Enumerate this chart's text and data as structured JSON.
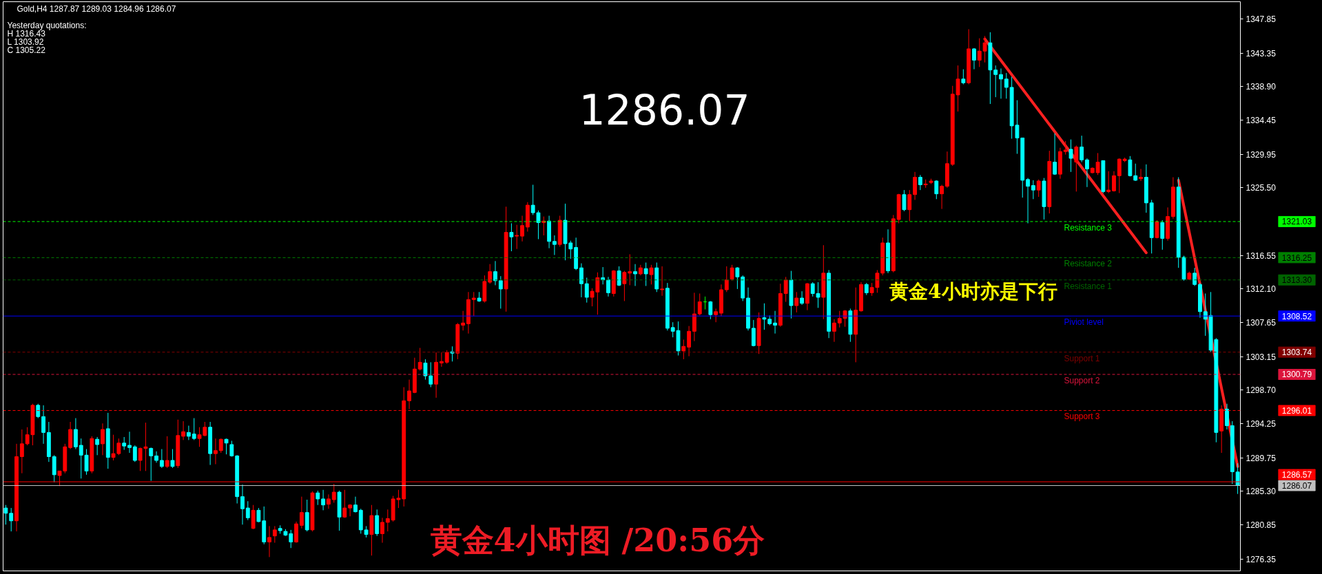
{
  "chart_data": {
    "type": "candlestick",
    "title": "Gold,H4 1287.87 1289.03 1284.96 1286.07",
    "categories": [
      null,
      null,
      null,
      null,
      null,
      null,
      null,
      null,
      null,
      null,
      null,
      null,
      null,
      null,
      null,
      null,
      null,
      null,
      null,
      null,
      null,
      null,
      null,
      null,
      null,
      null,
      null,
      null,
      null,
      null,
      null,
      null,
      null,
      null,
      null,
      null,
      null,
      null,
      null,
      null,
      null,
      null,
      null,
      null,
      null,
      null,
      null,
      null,
      null,
      null,
      null,
      null,
      null,
      null,
      null,
      null,
      null,
      null,
      null,
      null,
      null,
      null,
      null,
      null,
      null,
      null,
      null,
      null,
      null,
      null,
      null,
      null,
      null,
      null,
      null,
      null,
      null,
      null,
      null,
      null,
      null,
      null,
      null,
      null,
      null,
      null,
      null,
      null,
      null,
      null,
      null,
      null,
      null,
      null,
      null,
      null,
      null,
      null,
      null,
      null,
      null,
      null,
      null,
      null,
      null,
      null,
      null,
      null,
      null,
      null,
      null,
      null,
      null,
      null,
      null,
      null,
      null,
      null,
      null,
      null,
      null,
      null,
      null,
      null,
      null,
      null,
      null,
      null,
      null,
      null,
      null,
      null,
      null,
      null,
      null,
      null,
      null,
      null,
      null,
      null,
      null,
      null,
      null,
      null,
      null,
      null,
      null,
      null,
      null,
      null,
      null,
      null,
      null,
      null,
      null,
      null,
      null,
      null,
      null,
      null,
      null,
      null,
      null,
      null,
      null,
      null,
      null,
      null,
      null,
      null,
      null,
      null,
      null,
      null,
      null,
      null,
      null,
      null,
      null,
      null,
      null,
      null,
      null,
      null,
      null,
      null,
      null,
      null,
      null,
      null,
      null,
      null,
      null,
      null,
      null,
      null,
      null,
      null,
      null,
      null,
      null,
      null,
      null,
      null,
      null,
      null,
      null,
      null,
      null,
      null,
      null,
      null,
      null,
      null,
      null,
      null,
      null,
      null,
      null,
      null,
      null,
      null,
      null,
      null,
      null,
      null,
      null,
      null,
      null,
      null
    ],
    "ohlc": [
      [
        1283.1,
        1283.5,
        1280.9,
        1282.4
      ],
      [
        1282.4,
        1283.1,
        1280.0,
        1281.4
      ],
      [
        1281.4,
        1291.6,
        1280.0,
        1289.9
      ],
      [
        1289.9,
        1293.5,
        1287.7,
        1291.6
      ],
      [
        1291.6,
        1293.8,
        1291.4,
        1292.8
      ],
      [
        1292.8,
        1296.9,
        1291.4,
        1296.7
      ],
      [
        1296.7,
        1296.9,
        1295.0,
        1295.2
      ],
      [
        1295.2,
        1296.7,
        1291.6,
        1293.1
      ],
      [
        1293.1,
        1294.5,
        1289.2,
        1289.9
      ],
      [
        1289.9,
        1290.1,
        1286.5,
        1287.5
      ],
      [
        1287.4,
        1288.0,
        1286.0,
        1288.0
      ],
      [
        1288.0,
        1291.6,
        1287.7,
        1291.2
      ],
      [
        1291.1,
        1294.5,
        1290.9,
        1293.5
      ],
      [
        1293.5,
        1295.0,
        1290.9,
        1291.2
      ],
      [
        1291.4,
        1292.3,
        1287.0,
        1290.1
      ],
      [
        1290.1,
        1290.9,
        1287.5,
        1288.0
      ],
      [
        1288.0,
        1292.6,
        1287.7,
        1292.3
      ],
      [
        1292.2,
        1292.5,
        1290.1,
        1291.5
      ],
      [
        1291.6,
        1294.3,
        1290.1,
        1293.5
      ],
      [
        1293.6,
        1295.7,
        1288.3,
        1289.8
      ],
      [
        1289.8,
        1292.8,
        1289.4,
        1290.3
      ],
      [
        1290.3,
        1292.3,
        1290.1,
        1291.7
      ],
      [
        1291.7,
        1292.5,
        1290.8,
        1291.3
      ],
      [
        1291.4,
        1293.2,
        1290.4,
        1291.1
      ],
      [
        1291.2,
        1291.4,
        1289.2,
        1289.4
      ],
      [
        1289.4,
        1291.1,
        1288.0,
        1291.0
      ],
      [
        1291.0,
        1294.4,
        1288.0,
        1291.2
      ],
      [
        1291.0,
        1291.1,
        1286.7,
        1290.0
      ],
      [
        1290.0,
        1290.6,
        1289.1,
        1289.4
      ],
      [
        1289.4,
        1290.9,
        1288.4,
        1288.6
      ],
      [
        1288.6,
        1292.6,
        1288.4,
        1289.4
      ],
      [
        1289.4,
        1290.9,
        1288.4,
        1288.6
      ],
      [
        1288.7,
        1294.8,
        1288.4,
        1292.7
      ],
      [
        1292.6,
        1294.6,
        1292.1,
        1293.2
      ],
      [
        1293.1,
        1294.0,
        1292.1,
        1292.6
      ],
      [
        1292.9,
        1295.0,
        1292.1,
        1292.3
      ],
      [
        1292.3,
        1293.8,
        1291.2,
        1292.8
      ],
      [
        1292.7,
        1294.5,
        1292.6,
        1293.8
      ],
      [
        1293.8,
        1294.5,
        1288.8,
        1290.3
      ],
      [
        1290.3,
        1292.3,
        1288.9,
        1290.7
      ],
      [
        1290.7,
        1292.3,
        1290.4,
        1292.2
      ],
      [
        1292.2,
        1292.3,
        1290.2,
        1291.7
      ],
      [
        1291.5,
        1292.0,
        1289.9,
        1290.0
      ],
      [
        1290.0,
        1290.1,
        1283.7,
        1284.6
      ],
      [
        1284.6,
        1286.2,
        1280.9,
        1283.0
      ],
      [
        1283.1,
        1284.0,
        1281.5,
        1281.8
      ],
      [
        1280.4,
        1283.5,
        1280.3,
        1282.8
      ],
      [
        1282.8,
        1283.1,
        1281.2,
        1281.3
      ],
      [
        1281.4,
        1283.3,
        1278.3,
        1278.6
      ],
      [
        1278.6,
        1280.7,
        1276.6,
        1279.2
      ],
      [
        1279.4,
        1280.7,
        1278.5,
        1280.2
      ],
      [
        1280.4,
        1280.8,
        1279.7,
        1280.1
      ],
      [
        1280.0,
        1280.3,
        1279.4,
        1279.5
      ],
      [
        1279.7,
        1280.2,
        1277.8,
        1278.6
      ],
      [
        1278.6,
        1281.3,
        1278.5,
        1281.0
      ],
      [
        1280.8,
        1284.6,
        1280.4,
        1282.5
      ],
      [
        1282.5,
        1284.2,
        1280.0,
        1280.2
      ],
      [
        1280.2,
        1285.3,
        1280.0,
        1285.1
      ],
      [
        1285.1,
        1285.4,
        1283.5,
        1284.3
      ],
      [
        1284.3,
        1285.5,
        1282.8,
        1283.5
      ],
      [
        1283.6,
        1284.9,
        1283.0,
        1284.3
      ],
      [
        1284.2,
        1286.3,
        1283.8,
        1285.2
      ],
      [
        1285.2,
        1285.4,
        1280.1,
        1281.9
      ],
      [
        1281.9,
        1285.5,
        1281.8,
        1283.1
      ],
      [
        1283.1,
        1283.6,
        1282.0,
        1283.5
      ],
      [
        1283.5,
        1284.6,
        1282.5,
        1282.6
      ],
      [
        1282.8,
        1283.0,
        1279.7,
        1280.2
      ],
      [
        1280.2,
        1280.7,
        1279.2,
        1279.6
      ],
      [
        1279.6,
        1283.5,
        1276.8,
        1282.1
      ],
      [
        1282.1,
        1282.9,
        1279.4,
        1279.7
      ],
      [
        1279.7,
        1281.8,
        1278.5,
        1281.2
      ],
      [
        1281.2,
        1282.9,
        1280.0,
        1281.7
      ],
      [
        1281.5,
        1284.7,
        1281.3,
        1284.3
      ],
      [
        1284.2,
        1285.5,
        1283.1,
        1284.4
      ],
      [
        1284.3,
        1299.1,
        1283.3,
        1297.3
      ],
      [
        1297.3,
        1300.1,
        1296.2,
        1298.6
      ],
      [
        1298.4,
        1303.0,
        1298.3,
        1301.5
      ],
      [
        1301.5,
        1304.3,
        1301.3,
        1302.4
      ],
      [
        1302.3,
        1302.8,
        1300.1,
        1300.6
      ],
      [
        1300.6,
        1302.4,
        1299.1,
        1299.5
      ],
      [
        1299.5,
        1303.7,
        1297.7,
        1302.4
      ],
      [
        1302.3,
        1303.7,
        1301.8,
        1302.5
      ],
      [
        1302.4,
        1304.0,
        1302.2,
        1303.7
      ],
      [
        1303.8,
        1304.5,
        1302.5,
        1303.6
      ],
      [
        1303.6,
        1307.6,
        1302.8,
        1307.4
      ],
      [
        1307.3,
        1309.2,
        1306.6,
        1307.6
      ],
      [
        1307.5,
        1311.7,
        1306.2,
        1310.7
      ],
      [
        1310.7,
        1311.7,
        1308.5,
        1310.9
      ],
      [
        1310.9,
        1311.7,
        1310.4,
        1310.5
      ],
      [
        1310.5,
        1313.9,
        1310.3,
        1313.1
      ],
      [
        1313.0,
        1315.4,
        1312.8,
        1314.4
      ],
      [
        1314.4,
        1315.8,
        1312.6,
        1313.2
      ],
      [
        1313.2,
        1313.8,
        1309.5,
        1312.1
      ],
      [
        1312.1,
        1323.0,
        1309.1,
        1319.6
      ],
      [
        1319.6,
        1320.8,
        1317.1,
        1319.0
      ],
      [
        1319.1,
        1320.6,
        1317.4,
        1319.2
      ],
      [
        1319.1,
        1321.8,
        1318.4,
        1320.5
      ],
      [
        1320.3,
        1323.6,
        1319.7,
        1323.2
      ],
      [
        1323.2,
        1325.9,
        1321.9,
        1322.2
      ],
      [
        1322.2,
        1322.5,
        1318.7,
        1320.9
      ],
      [
        1320.9,
        1321.7,
        1319.2,
        1321.1
      ],
      [
        1321.1,
        1321.8,
        1317.5,
        1318.4
      ],
      [
        1318.4,
        1319.2,
        1316.6,
        1318.0
      ],
      [
        1318.0,
        1321.8,
        1317.7,
        1321.2
      ],
      [
        1321.2,
        1323.4,
        1315.9,
        1318.1
      ],
      [
        1318.2,
        1318.5,
        1316.1,
        1317.4
      ],
      [
        1317.6,
        1318.9,
        1314.6,
        1314.8
      ],
      [
        1314.9,
        1315.5,
        1311.0,
        1312.8
      ],
      [
        1312.8,
        1313.6,
        1310.3,
        1311.0
      ],
      [
        1311.0,
        1312.2,
        1309.8,
        1311.8
      ],
      [
        1311.7,
        1314.3,
        1308.7,
        1313.6
      ],
      [
        1313.6,
        1315.0,
        1312.7,
        1313.3
      ],
      [
        1313.3,
        1313.7,
        1311.1,
        1311.6
      ],
      [
        1311.5,
        1314.6,
        1311.1,
        1314.5
      ],
      [
        1314.5,
        1315.1,
        1312.5,
        1312.6
      ],
      [
        1312.8,
        1314.5,
        1310.5,
        1314.3
      ],
      [
        1314.2,
        1316.7,
        1312.6,
        1314.4
      ],
      [
        1314.4,
        1315.4,
        1312.5,
        1314.1
      ],
      [
        1314.1,
        1315.3,
        1313.9,
        1314.9
      ],
      [
        1314.8,
        1315.6,
        1312.5,
        1314.1
      ],
      [
        1314.0,
        1315.3,
        1312.7,
        1314.9
      ],
      [
        1314.9,
        1315.6,
        1311.7,
        1312.1
      ],
      [
        1312.0,
        1315.1,
        1311.2,
        1312.1
      ],
      [
        1312.2,
        1312.9,
        1306.6,
        1306.9
      ],
      [
        1307.0,
        1307.7,
        1305.7,
        1306.5
      ],
      [
        1306.6,
        1307.8,
        1303.3,
        1303.9
      ],
      [
        1303.9,
        1305.4,
        1302.8,
        1304.5
      ],
      [
        1304.4,
        1307.2,
        1303.2,
        1306.5
      ],
      [
        1306.5,
        1311.6,
        1305.2,
        1308.8
      ],
      [
        1308.8,
        1311.5,
        1308.6,
        1310.4
      ],
      [
        1310.4,
        1311.1,
        1309.4,
        1310.4
      ],
      [
        1310.4,
        1310.5,
        1308.1,
        1308.7
      ],
      [
        1308.7,
        1309.5,
        1307.7,
        1309.1
      ],
      [
        1308.9,
        1312.7,
        1308.5,
        1312.0
      ],
      [
        1312.0,
        1315.1,
        1311.7,
        1313.3
      ],
      [
        1313.4,
        1315.3,
        1313.2,
        1314.9
      ],
      [
        1314.9,
        1315.0,
        1312.1,
        1313.7
      ],
      [
        1313.7,
        1313.9,
        1310.5,
        1310.9
      ],
      [
        1310.9,
        1312.3,
        1306.6,
        1306.9
      ],
      [
        1306.9,
        1308.0,
        1304.5,
        1304.6
      ],
      [
        1304.6,
        1309.0,
        1303.5,
        1308.2
      ],
      [
        1308.3,
        1310.2,
        1306.7,
        1308.1
      ],
      [
        1308.1,
        1308.6,
        1307.3,
        1307.5
      ],
      [
        1307.6,
        1309.2,
        1306.2,
        1307.3
      ],
      [
        1307.3,
        1312.8,
        1307.1,
        1311.5
      ],
      [
        1311.5,
        1313.7,
        1310.4,
        1313.3
      ],
      [
        1313.3,
        1314.5,
        1308.2,
        1309.9
      ],
      [
        1309.9,
        1311.7,
        1309.0,
        1310.9
      ],
      [
        1310.9,
        1311.8,
        1310.0,
        1310.2
      ],
      [
        1310.2,
        1312.9,
        1309.3,
        1312.8
      ],
      [
        1312.8,
        1313.0,
        1311.1,
        1311.5
      ],
      [
        1311.5,
        1313.0,
        1309.6,
        1311.0
      ],
      [
        1311.0,
        1317.9,
        1308.1,
        1314.2
      ],
      [
        1314.2,
        1314.6,
        1305.6,
        1306.5
      ],
      [
        1306.5,
        1308.1,
        1305.1,
        1307.6
      ],
      [
        1307.6,
        1309.2,
        1307.0,
        1308.2
      ],
      [
        1308.2,
        1309.3,
        1307.1,
        1309.2
      ],
      [
        1309.2,
        1309.5,
        1305.1,
        1306.1
      ],
      [
        1306.1,
        1312.3,
        1302.4,
        1309.3
      ],
      [
        1309.2,
        1313.0,
        1309.1,
        1312.7
      ],
      [
        1312.7,
        1312.9,
        1311.3,
        1311.6
      ],
      [
        1311.6,
        1312.9,
        1311.2,
        1312.3
      ],
      [
        1312.3,
        1314.6,
        1311.6,
        1314.2
      ],
      [
        1314.2,
        1318.9,
        1313.9,
        1318.2
      ],
      [
        1318.2,
        1320.0,
        1314.2,
        1314.5
      ],
      [
        1314.5,
        1321.9,
        1314.3,
        1321.4
      ],
      [
        1321.3,
        1324.7,
        1320.8,
        1324.6
      ],
      [
        1324.6,
        1325.2,
        1322.4,
        1322.6
      ],
      [
        1322.6,
        1325.2,
        1321.1,
        1324.6
      ],
      [
        1324.6,
        1327.6,
        1323.9,
        1326.9
      ],
      [
        1326.9,
        1327.2,
        1325.2,
        1325.9
      ],
      [
        1325.9,
        1326.6,
        1325.5,
        1326.0
      ],
      [
        1326.2,
        1326.7,
        1326.0,
        1326.4
      ],
      [
        1326.4,
        1326.5,
        1324.0,
        1324.7
      ],
      [
        1324.7,
        1325.9,
        1322.7,
        1325.7
      ],
      [
        1325.7,
        1330.3,
        1325.5,
        1328.7
      ],
      [
        1328.6,
        1339.0,
        1328.4,
        1337.9
      ],
      [
        1337.8,
        1341.7,
        1335.6,
        1339.9
      ],
      [
        1339.9,
        1341.2,
        1339.2,
        1339.4
      ],
      [
        1339.4,
        1346.5,
        1339.2,
        1343.9
      ],
      [
        1343.9,
        1344.0,
        1341.2,
        1342.4
      ],
      [
        1342.4,
        1345.3,
        1341.5,
        1343.6
      ],
      [
        1343.6,
        1345.6,
        1342.1,
        1344.7
      ],
      [
        1344.7,
        1346.1,
        1336.6,
        1341.1
      ],
      [
        1341.1,
        1341.7,
        1337.5,
        1340.5
      ],
      [
        1340.5,
        1341.3,
        1337.3,
        1339.9
      ],
      [
        1339.9,
        1340.7,
        1337.3,
        1338.8
      ],
      [
        1338.8,
        1340.2,
        1332.0,
        1333.7
      ],
      [
        1333.8,
        1337.1,
        1330.0,
        1332.1
      ],
      [
        1332.1,
        1332.1,
        1324.2,
        1326.5
      ],
      [
        1326.6,
        1326.8,
        1320.8,
        1325.7
      ],
      [
        1325.8,
        1326.5,
        1324.0,
        1325.2
      ],
      [
        1325.2,
        1326.6,
        1324.3,
        1326.4
      ],
      [
        1326.4,
        1326.8,
        1321.3,
        1323.0
      ],
      [
        1323.0,
        1330.4,
        1322.1,
        1329.0
      ],
      [
        1328.9,
        1332.7,
        1327.2,
        1327.3
      ],
      [
        1327.3,
        1330.8,
        1326.7,
        1330.3
      ],
      [
        1330.3,
        1331.7,
        1329.9,
        1330.5
      ],
      [
        1330.6,
        1331.9,
        1327.6,
        1329.4
      ],
      [
        1328.9,
        1331.1,
        1325.0,
        1330.9
      ],
      [
        1330.9,
        1332.4,
        1328.9,
        1329.2
      ],
      [
        1329.2,
        1329.4,
        1325.6,
        1328.0
      ],
      [
        1327.5,
        1328.2,
        1327.4,
        1328.1
      ],
      [
        1327.5,
        1330.1,
        1327.2,
        1328.9
      ],
      [
        1329.1,
        1329.1,
        1324.8,
        1325.0
      ],
      [
        1325.0,
        1327.7,
        1324.8,
        1325.2
      ],
      [
        1325.1,
        1327.7,
        1325.0,
        1327.1
      ],
      [
        1327.1,
        1329.4,
        1324.8,
        1329.3
      ],
      [
        1329.1,
        1329.5,
        1328.9,
        1329.3
      ],
      [
        1329.2,
        1329.7,
        1327.0,
        1327.1
      ],
      [
        1327.1,
        1328.7,
        1326.4,
        1326.5
      ],
      [
        1326.7,
        1328.0,
        1326.4,
        1326.9
      ],
      [
        1326.9,
        1328.6,
        1322.2,
        1323.5
      ],
      [
        1323.5,
        1323.9,
        1316.8,
        1318.9
      ],
      [
        1318.9,
        1321.2,
        1318.8,
        1321.0
      ],
      [
        1320.9,
        1321.2,
        1317.3,
        1318.8
      ],
      [
        1318.8,
        1322.9,
        1318.5,
        1321.7
      ],
      [
        1321.7,
        1326.9,
        1321.4,
        1325.6
      ],
      [
        1325.6,
        1326.9,
        1314.9,
        1316.3
      ],
      [
        1316.3,
        1316.5,
        1313.2,
        1313.4
      ],
      [
        1313.4,
        1314.4,
        1313.3,
        1314.2
      ],
      [
        1314.2,
        1314.9,
        1312.5,
        1312.7
      ],
      [
        1312.7,
        1312.9,
        1308.3,
        1309.1
      ],
      [
        1309.1,
        1311.5,
        1305.9,
        1308.1
      ],
      [
        1308.6,
        1311.7,
        1303.7,
        1304.0
      ],
      [
        1305.4,
        1305.6,
        1291.8,
        1293.1
      ],
      [
        1293.3,
        1296.7,
        1290.4,
        1296.2
      ],
      [
        1296.2,
        1296.9,
        1293.5,
        1294.0
      ],
      [
        1294.0,
        1294.6,
        1286.3,
        1287.9
      ],
      [
        1287.87,
        1289.03,
        1284.96,
        1286.07
      ]
    ],
    "colors": [
      "#00ffff",
      "#00ffff",
      "#ff0000",
      "#ff0000",
      "#ff0000",
      "#ff0000",
      "#00ffff",
      "#00ffff",
      "#00ffff",
      "#00ffff",
      "#ff0000",
      "#ff0000",
      "#ff0000",
      "#00ffff",
      "#00ffff",
      "#00ffff",
      "#ff0000",
      "#00ffff",
      "#ff0000",
      "#00ffff",
      "#ff0000",
      "#ff0000",
      "#00ffff",
      "#00ffff",
      "#00ffff",
      "#ff0000",
      "#ff0000",
      "#00ffff",
      "#00ffff",
      "#00ffff",
      "#ff0000",
      "#00ffff",
      "#ff0000",
      "#ff0000",
      "#00ffff",
      "#00ffff",
      "#ff0000",
      "#ff0000",
      "#00ffff",
      "#ff0000",
      "#ff0000",
      "#00ffff",
      "#00ffff",
      "#00ffff",
      "#00ffff",
      "#00ffff",
      "#ff0000",
      "#00ffff",
      "#00ffff",
      "#ff0000",
      "#ff0000",
      "#00ffff",
      "#00ffff",
      "#00ffff",
      "#ff0000",
      "#ff0000",
      "#00ffff",
      "#ff0000",
      "#00ffff",
      "#00ffff",
      "#ff0000",
      "#ff0000",
      "#00ffff",
      "#ff0000",
      "#ff0000",
      "#00ffff",
      "#00ffff",
      "#00ffff",
      "#ff0000",
      "#00ffff",
      "#ff0000",
      "#ff0000",
      "#ff0000",
      "#ff0000",
      "#ff0000",
      "#ff0000",
      "#ff0000",
      "#ff0000",
      "#00ffff",
      "#00ffff",
      "#ff0000",
      "#ff0000",
      "#ff0000",
      "#00ffff",
      "#ff0000",
      "#ff0000",
      "#ff0000",
      "#ff0000",
      "#00ffff",
      "#ff0000",
      "#ff0000",
      "#00ffff",
      "#00ffff",
      "#ff0000",
      "#00ffff",
      "#ff0000",
      "#ff0000",
      "#ff0000",
      "#00ffff",
      "#00ffff",
      "#ff0000",
      "#00ffff",
      "#00ffff",
      "#ff0000",
      "#00ffff",
      "#00ffff",
      "#00ffff",
      "#00ffff",
      "#00ffff",
      "#ff0000",
      "#ff0000",
      "#00ffff",
      "#00ffff",
      "#ff0000",
      "#00ffff",
      "#ff0000",
      "#ff0000",
      "#00ffff",
      "#ff0000",
      "#00ffff",
      "#ff0000",
      "#00ffff",
      "#ff0000",
      "#00ffff",
      "#00ffff",
      "#00ffff",
      "#ff0000",
      "#ff0000",
      "#ff0000",
      "#ff0000",
      "#00ff00",
      "#00ffff",
      "#ff0000",
      "#ff0000",
      "#ff0000",
      "#ff0000",
      "#00ffff",
      "#00ffff",
      "#00ffff",
      "#00ffff",
      "#ff0000",
      "#00ffff",
      "#00ffff",
      "#00ffff",
      "#ff0000",
      "#ff0000",
      "#00ffff",
      "#ff0000",
      "#00ffff",
      "#ff0000",
      "#00ffff",
      "#00ffff",
      "#ff0000",
      "#00ffff",
      "#ff0000",
      "#ff0000",
      "#ff0000",
      "#00ffff",
      "#ff0000",
      "#ff0000",
      "#00ffff",
      "#ff0000",
      "#ff0000",
      "#ff0000",
      "#00ffff",
      "#ff0000",
      "#ff0000",
      "#00ffff",
      "#ff0000",
      "#ff0000",
      "#00ffff",
      "#ff0000",
      "#ff0000",
      "#00ffff",
      "#ff0000",
      "#ff0000",
      "#ff0000",
      "#ff0000",
      "#00ffff",
      "#ff0000",
      "#00ffff",
      "#ff0000",
      "#ff0000",
      "#00ffff",
      "#00ffff",
      "#00ffff",
      "#00ffff",
      "#00ffff",
      "#00ffff",
      "#00ffff",
      "#00ffff",
      "#00ffff",
      "#ff0000",
      "#00ffff",
      "#ff0000",
      "#00ffff",
      "#ff0000",
      "#ff0000",
      "#00ffff",
      "#ff0000",
      "#00ffff",
      "#00ffff",
      "#ff0000",
      "#ff0000",
      "#00ffff",
      "#ff0000",
      "#ff0000",
      "#ff0000",
      "#ff0000",
      "#00ffff",
      "#00ffff",
      "#ff0000",
      "#00ffff",
      "#00ffff",
      "#ff0000",
      "#00ffff",
      "#ff0000",
      "#ff0000",
      "#00ffff",
      "#00ffff",
      "#ff0000",
      "#00ffff",
      "#00ffff",
      "#00ffff",
      "#00ffff",
      "#00ffff",
      "#ff0000",
      "#00ffff",
      "#00ffff",
      "#00ffff"
    ],
    "series": [
      {
        "type": "line",
        "color": "#ff2020",
        "values": [
          null,
          null,
          null,
          null,
          null,
          null,
          null,
          null,
          null,
          null,
          null,
          null,
          null,
          null,
          null,
          null,
          null,
          null,
          null,
          null,
          null,
          null,
          null,
          null,
          null,
          null,
          null,
          null,
          null,
          null,
          null,
          null,
          null,
          null,
          null,
          null,
          null,
          null,
          null,
          null,
          null,
          null,
          null,
          null,
          null,
          null,
          null,
          null,
          null,
          null,
          null,
          null,
          null,
          null,
          null,
          null,
          null,
          null,
          null,
          null,
          null,
          null,
          null,
          null,
          null,
          null,
          null,
          null,
          null,
          null,
          null,
          null,
          null,
          null,
          null,
          null,
          null,
          null,
          null,
          null,
          null,
          null,
          null,
          null,
          null,
          null,
          null,
          null,
          null,
          null,
          null,
          null,
          null,
          null,
          null,
          null,
          null,
          null,
          null,
          null,
          null,
          null,
          null,
          null,
          null,
          null,
          null,
          null,
          null,
          null,
          null,
          null,
          null,
          null,
          null,
          null,
          null,
          null,
          null,
          null,
          null,
          null,
          null,
          null,
          null,
          null,
          null,
          null,
          null,
          null,
          null,
          null,
          null,
          null,
          null,
          null,
          null,
          null,
          null,
          null,
          null,
          null,
          null,
          null,
          null,
          null,
          null,
          null,
          null,
          null,
          null,
          null,
          null,
          null,
          null,
          null,
          null,
          null,
          null,
          null,
          null,
          null,
          null,
          null,
          null,
          null,
          null,
          null,
          null,
          null,
          null,
          null,
          null,
          null,
          null,
          null,
          null,
          null,
          null,
          null,
          null,
          null,
          1345.2,
          null,
          null,
          null,
          null,
          null,
          null,
          null,
          null,
          null,
          null,
          null,
          null,
          null,
          null,
          null,
          null,
          null,
          null,
          null,
          null,
          null,
          null,
          null,
          null,
          null,
          null,
          null,
          null,
          null,
          1316.9,
          null,
          null,
          null,
          null,
          null,
          null,
          null,
          null,
          null,
          null,
          null,
          null,
          null,
          null,
          null,
          null,
          null
        ]
      },
      {
        "type": "line",
        "color": "#ff2020",
        "values": [
          null,
          null,
          null,
          null,
          null,
          null,
          null,
          null,
          null,
          null,
          null,
          null,
          null,
          null,
          null,
          null,
          null,
          null,
          null,
          null,
          null,
          null,
          null,
          null,
          null,
          null,
          null,
          null,
          null,
          null,
          null,
          null,
          null,
          null,
          null,
          null,
          null,
          null,
          null,
          null,
          null,
          null,
          null,
          null,
          null,
          null,
          null,
          null,
          null,
          null,
          null,
          null,
          null,
          null,
          null,
          null,
          null,
          null,
          null,
          null,
          null,
          null,
          null,
          null,
          null,
          null,
          null,
          null,
          null,
          null,
          null,
          null,
          null,
          null,
          null,
          null,
          null,
          null,
          null,
          null,
          null,
          null,
          null,
          null,
          null,
          null,
          null,
          null,
          null,
          null,
          null,
          null,
          null,
          null,
          null,
          null,
          null,
          null,
          null,
          null,
          null,
          null,
          null,
          null,
          null,
          null,
          null,
          null,
          null,
          null,
          null,
          null,
          null,
          null,
          null,
          null,
          null,
          null,
          null,
          null,
          null,
          null,
          null,
          null,
          null,
          null,
          null,
          null,
          null,
          null,
          null,
          null,
          null,
          null,
          null,
          null,
          null,
          null,
          null,
          null,
          null,
          null,
          null,
          null,
          null,
          null,
          null,
          null,
          null,
          null,
          null,
          null,
          null,
          null,
          null,
          null,
          null,
          null,
          null,
          null,
          null,
          null,
          null,
          null,
          null,
          null,
          null,
          null,
          null,
          null,
          null,
          null,
          null,
          null,
          null,
          null,
          null,
          null,
          null,
          null,
          null,
          null,
          null,
          null,
          null,
          null,
          null,
          null,
          null,
          null,
          null,
          null,
          null,
          null,
          null,
          null,
          null,
          null,
          null,
          null,
          null,
          null,
          null,
          null,
          null,
          null,
          null,
          null,
          null,
          null,
          null,
          null,
          null,
          null,
          null,
          null,
          null,
          null,
          1326.5,
          null,
          null,
          null,
          null,
          null,
          null,
          null,
          null,
          null,
          null,
          1288.6
        ]
      }
    ],
    "ylim": [
      1274.77,
      1350.14
    ],
    "yticks": [
      1276.35,
      1280.85,
      {
        "value": 1285.3,
        "label": "1285.30"
      },
      1289.75,
      1294.25,
      {
        "value": 1298.7,
        "label": "1298.70"
      },
      1303.15,
      1307.65,
      {
        "value": 1312.1,
        "label": "1312.10"
      },
      1316.55,
      {
        "value": 1325.5,
        "label": "1325.50"
      },
      1329.95,
      1334.45,
      {
        "value": 1338.9,
        "label": "1338.90"
      },
      1343.35,
      1347.85
    ],
    "tick_labels": "y",
    "ref_lines": [
      {
        "axis": "y",
        "value": 1321.03,
        "label": "Resistance 3",
        "color": "#00ff00",
        "line_style": "dashed"
      },
      {
        "axis": "y",
        "value": 1316.25,
        "label": "Resistance 2",
        "color": "#008000",
        "line_style": "dashed"
      },
      {
        "axis": "y",
        "value": 1313.3,
        "label": "Resistance 1",
        "color": "#006400",
        "line_style": "dashed"
      },
      {
        "axis": "y",
        "value": 1308.52,
        "label": "Piviot level",
        "color": "#0000ff",
        "line_style": "solid"
      },
      {
        "axis": "y",
        "value": 1303.74,
        "label": "Support 1",
        "color": "#800000",
        "line_style": "dashed"
      },
      {
        "axis": "y",
        "value": 1300.79,
        "label": "Support 2",
        "color": "#dc143c",
        "line_style": "dashed"
      },
      {
        "axis": "y",
        "value": 1296.01,
        "label": "Support 3",
        "color": "#ff0000",
        "line_style": "dashed"
      },
      {
        "axis": "y",
        "value": 1286.57,
        "color": "#ff0000",
        "line_style": "solid"
      },
      {
        "axis": "y",
        "value": 1286.07,
        "color": "#c0c0c0",
        "line_style": "solid"
      }
    ],
    "annotations": [
      "Yesterday quotations:",
      "H 1316.43",
      "L 1303.92",
      "C 1305.22",
      "1286.07",
      "黄金4小时亦是下行",
      "黄金4小时图 /20:56分",
      "1321.03",
      "1316.25",
      "1313.30",
      "1308.52",
      "1303.74",
      "1300.79",
      "1296.01",
      "1286.57",
      "1286.07"
    ]
  }
}
